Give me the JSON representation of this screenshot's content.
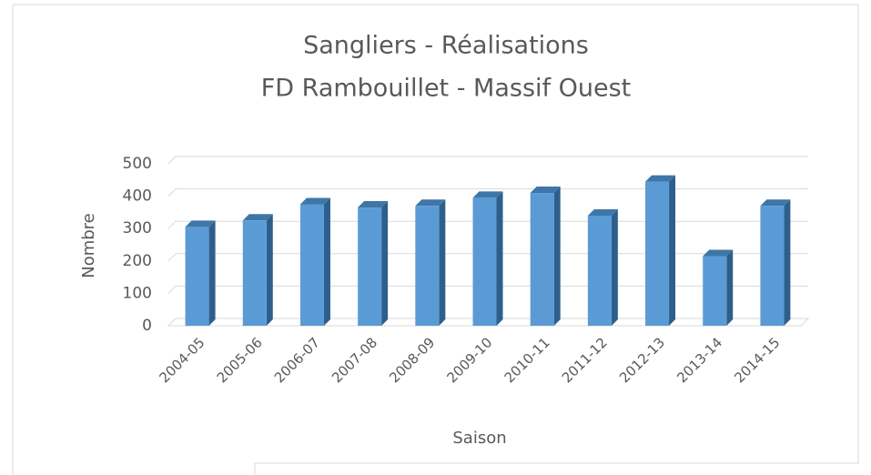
{
  "chart_data": {
    "type": "bar3d",
    "title": [
      "Sangliers - Réalisations",
      "FD Rambouillet - Massif Ouest"
    ],
    "x_label": "Saison",
    "y_label": "Nombre",
    "categories": [
      "2004-05",
      "2005-06",
      "2006-07",
      "2007-08",
      "2008-09",
      "2009-10",
      "2010-11",
      "2011-12",
      "2012-13",
      "2013-14",
      "2014-15"
    ],
    "values": [
      305,
      325,
      375,
      365,
      370,
      395,
      410,
      340,
      445,
      215,
      370
    ],
    "color": "#5b9bd5",
    "ylim": [
      0,
      500
    ],
    "yticks": [
      0,
      100,
      200,
      300,
      400,
      500
    ],
    "grid": true
  }
}
